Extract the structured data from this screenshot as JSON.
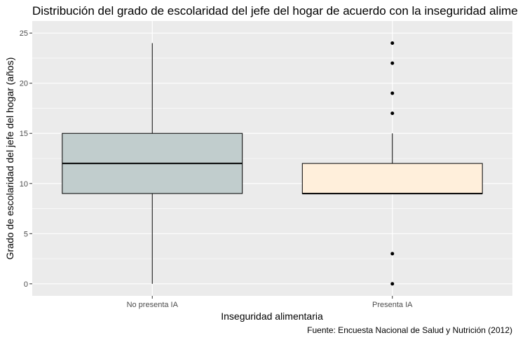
{
  "chart_data": {
    "type": "boxplot",
    "title": "Distribución del grado de escolaridad del jefe del hogar de acuerdo con la inseguridad alimentaria",
    "xlabel": "Inseguridad alimentaria",
    "ylabel": "Grado de escolaridad del jefe del hogar (años)",
    "caption": "Fuente: Encuesta Nacional de Salud y Nutrición (2012)",
    "ylim": [
      -1.2,
      26.2
    ],
    "yticks": [
      0,
      5,
      10,
      15,
      20,
      25
    ],
    "grid": true,
    "panel_color": "#ebebeb",
    "grid_color": "#ffffff",
    "categories": [
      "No presenta IA",
      "Presenta IA"
    ],
    "boxes": [
      {
        "category": "No presenta IA",
        "fill": "#c1cdcd",
        "whisker_low": 0,
        "q1": 9,
        "median": 12,
        "q3": 15,
        "whisker_high": 24,
        "outliers": []
      },
      {
        "category": "Presenta IA",
        "fill": "#ffefdb",
        "whisker_low": 9,
        "q1": 9,
        "median": 9,
        "q3": 12,
        "whisker_high": 15,
        "outliers": [
          0,
          3,
          17,
          19,
          22,
          24
        ]
      }
    ]
  }
}
